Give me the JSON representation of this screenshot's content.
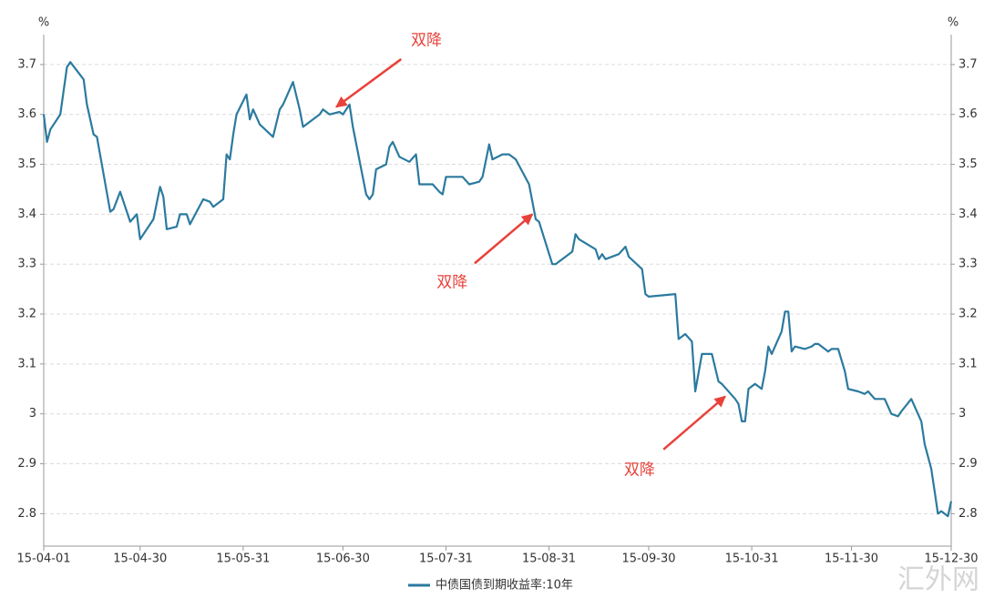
{
  "chart_data": {
    "type": "line",
    "y_label": "%",
    "watermark": "汇外网",
    "xlim": [
      "15-04-01",
      "15-12-30"
    ],
    "xticks": [
      "15-04-01",
      "15-04-30",
      "15-05-31",
      "15-06-30",
      "15-07-31",
      "15-08-31",
      "15-09-30",
      "15-10-31",
      "15-11-30",
      "15-12-30"
    ],
    "ylim": [
      2.735,
      3.76
    ],
    "yticks": [
      2.8,
      2.9,
      3,
      3.1,
      3.2,
      3.3,
      3.4,
      3.5,
      3.6,
      3.7
    ],
    "grid": true,
    "x": [
      "15-04-01",
      "15-04-02",
      "15-04-03",
      "15-04-06",
      "15-04-08",
      "15-04-09",
      "15-04-13",
      "15-04-14",
      "15-04-16",
      "15-04-17",
      "15-04-21",
      "15-04-22",
      "15-04-24",
      "15-04-27",
      "15-04-29",
      "15-04-30",
      "15-05-04",
      "15-05-06",
      "15-05-07",
      "15-05-08",
      "15-05-11",
      "15-05-12",
      "15-05-14",
      "15-05-15",
      "15-05-19",
      "15-05-21",
      "15-05-22",
      "15-05-25",
      "15-05-26",
      "15-05-27",
      "15-05-28",
      "15-05-29",
      "15-06-01",
      "15-06-02",
      "15-06-03",
      "15-06-05",
      "15-06-09",
      "15-06-11",
      "15-06-12",
      "15-06-15",
      "15-06-17",
      "15-06-18",
      "15-06-23",
      "15-06-24",
      "15-06-26",
      "15-06-29",
      "15-06-30",
      "15-07-02",
      "15-07-03",
      "15-07-07",
      "15-07-08",
      "15-07-09",
      "15-07-10",
      "15-07-13",
      "15-07-14",
      "15-07-15",
      "15-07-17",
      "15-07-20",
      "15-07-22",
      "15-07-23",
      "15-07-27",
      "15-07-29",
      "15-07-30",
      "15-07-31",
      "15-08-03",
      "15-08-05",
      "15-08-07",
      "15-08-10",
      "15-08-11",
      "15-08-13",
      "15-08-14",
      "15-08-17",
      "15-08-19",
      "15-08-21",
      "15-08-25",
      "15-08-27",
      "15-08-28",
      "15-09-01",
      "15-09-02",
      "15-09-07",
      "15-09-08",
      "15-09-09",
      "15-09-14",
      "15-09-15",
      "15-09-16",
      "15-09-17",
      "15-09-21",
      "15-09-23",
      "15-09-24",
      "15-09-28",
      "15-09-29",
      "15-09-30",
      "15-10-08",
      "15-10-09",
      "15-10-11",
      "15-10-13",
      "15-10-14",
      "15-10-16",
      "15-10-19",
      "15-10-21",
      "15-10-22",
      "15-10-26",
      "15-10-27",
      "15-10-28",
      "15-10-29",
      "15-10-30",
      "15-11-01",
      "15-11-03",
      "15-11-04",
      "15-11-05",
      "15-11-06",
      "15-11-09",
      "15-11-10",
      "15-11-11",
      "15-11-12",
      "15-11-13",
      "15-11-16",
      "15-11-18",
      "15-11-19",
      "15-11-20",
      "15-11-23",
      "15-11-24",
      "15-11-26",
      "15-11-28",
      "15-11-29",
      "15-12-02",
      "15-12-04",
      "15-12-05",
      "15-12-07",
      "15-12-10",
      "15-12-12",
      "15-12-14",
      "15-12-15",
      "15-12-18",
      "15-12-20",
      "15-12-21",
      "15-12-22",
      "15-12-24",
      "15-12-25",
      "15-12-26",
      "15-12-27",
      "15-12-29",
      "15-12-30"
    ],
    "series": [
      {
        "name": "中债国债到期收益率:10年",
        "color": "#2b7a9f",
        "values": [
          3.6,
          3.545,
          3.57,
          3.6,
          3.695,
          3.705,
          3.67,
          3.62,
          3.56,
          3.555,
          3.405,
          3.41,
          3.445,
          3.385,
          3.4,
          3.35,
          3.39,
          3.455,
          3.435,
          3.37,
          3.375,
          3.4,
          3.4,
          3.38,
          3.43,
          3.425,
          3.415,
          3.43,
          3.52,
          3.51,
          3.56,
          3.6,
          3.64,
          3.59,
          3.61,
          3.58,
          3.555,
          3.61,
          3.62,
          3.665,
          3.61,
          3.575,
          3.6,
          3.61,
          3.6,
          3.605,
          3.6,
          3.62,
          3.575,
          3.44,
          3.43,
          3.44,
          3.49,
          3.5,
          3.535,
          3.545,
          3.515,
          3.505,
          3.52,
          3.46,
          3.46,
          3.445,
          3.44,
          3.475,
          3.475,
          3.475,
          3.46,
          3.465,
          3.475,
          3.54,
          3.51,
          3.52,
          3.52,
          3.51,
          3.46,
          3.39,
          3.385,
          3.3,
          3.3,
          3.325,
          3.36,
          3.35,
          3.33,
          3.31,
          3.32,
          3.31,
          3.32,
          3.335,
          3.315,
          3.29,
          3.24,
          3.235,
          3.24,
          3.15,
          3.16,
          3.145,
          3.045,
          3.12,
          3.12,
          3.065,
          3.06,
          3.03,
          3.02,
          2.985,
          2.985,
          3.05,
          3.06,
          3.05,
          3.085,
          3.135,
          3.12,
          3.165,
          3.205,
          3.205,
          3.125,
          3.135,
          3.13,
          3.135,
          3.14,
          3.14,
          3.125,
          3.13,
          3.13,
          3.085,
          3.05,
          3.045,
          3.04,
          3.045,
          3.03,
          3.03,
          3.0,
          2.995,
          3.005,
          3.03,
          3.0,
          2.985,
          2.94,
          2.89,
          2.845,
          2.8,
          2.805,
          2.795,
          2.825
        ]
      }
    ],
    "annotations": [
      {
        "text": "双降",
        "x": "15-06-28",
        "y": 3.615
      },
      {
        "text": "双降",
        "x": "15-08-26",
        "y": 3.4
      },
      {
        "text": "双降",
        "x": "15-10-23",
        "y": 3.035
      }
    ]
  }
}
